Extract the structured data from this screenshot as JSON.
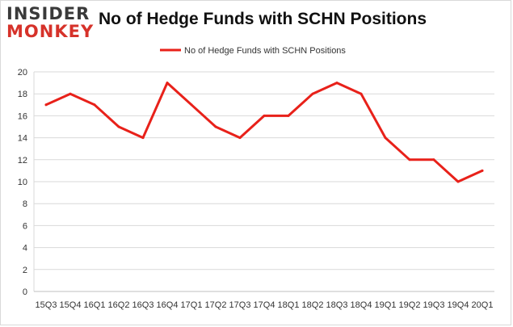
{
  "header": {
    "logo_line1": "INSIDER",
    "logo_line2": "MONKEY",
    "title": "No of Hedge Funds with SCHN Positions"
  },
  "colors": {
    "series": "#e8211a",
    "grid": "#d9d9d9",
    "logo_accent": "#d6322a"
  },
  "chart_data": {
    "type": "line",
    "title": "No of Hedge Funds with SCHN Positions",
    "xlabel": "",
    "ylabel": "",
    "ylim": [
      0,
      20
    ],
    "yticks": [
      0,
      2,
      4,
      6,
      8,
      10,
      12,
      14,
      16,
      18,
      20
    ],
    "grid": true,
    "legend": "top-center",
    "categories": [
      "15Q3",
      "15Q4",
      "16Q1",
      "16Q2",
      "16Q3",
      "16Q4",
      "17Q1",
      "17Q2",
      "17Q3",
      "17Q4",
      "18Q1",
      "18Q2",
      "18Q3",
      "18Q4",
      "19Q1",
      "19Q2",
      "19Q3",
      "19Q4",
      "20Q1"
    ],
    "series": [
      {
        "name": "No of Hedge Funds with SCHN Positions",
        "values": [
          17,
          18,
          17,
          15,
          14,
          19,
          17,
          15,
          14,
          16,
          16,
          18,
          19,
          18,
          14,
          12,
          12,
          10,
          11
        ]
      }
    ]
  }
}
